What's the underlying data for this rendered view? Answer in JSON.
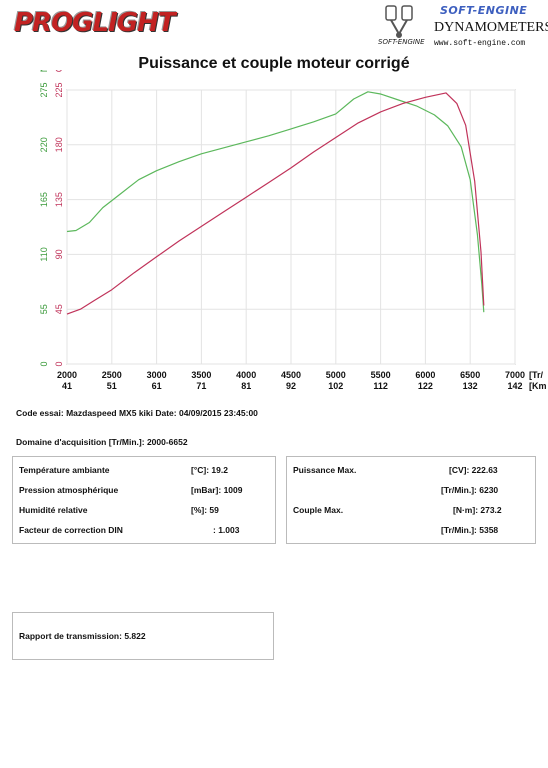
{
  "header": {
    "left_logo": "PROGLIGHT",
    "right_brand_top": "SOFT-ENGINE",
    "right_brand_main": "DYNAMOMETERS",
    "right_brand_small": "SOFT-ENGINE",
    "right_brand_url": "www.soft-engine.com"
  },
  "chart_data": {
    "type": "line",
    "title": "Puissance et couple moteur corrigé",
    "x_unit_label": "[Tr/",
    "x2_unit_label": "[Km",
    "x_ticks": [
      2000,
      2500,
      3000,
      3500,
      4000,
      4500,
      5000,
      5500,
      6000,
      6500,
      7000
    ],
    "x2_ticks": [
      "41",
      "51",
      "61",
      "71",
      "81",
      "92",
      "102",
      "112",
      "122",
      "132",
      "142"
    ],
    "xlim": [
      2000,
      7000
    ],
    "left_axis_nm": {
      "label": "N m",
      "ticks": [
        "0",
        "55",
        "110",
        "165",
        "220",
        "275"
      ],
      "ylim": [
        0,
        275
      ],
      "color": "#3a9a3a"
    },
    "left_axis_cv": {
      "label": "CV",
      "ticks": [
        "0",
        "45",
        "90",
        "135",
        "180",
        "225"
      ],
      "ylim": [
        0,
        225
      ],
      "color": "#c0335a"
    },
    "grid": true,
    "series": [
      {
        "name": "",
        "axis": "nm",
        "color": "#5cb85c",
        "x": [
          2000,
          2100,
          2250,
          2400,
          2600,
          2800,
          3000,
          3250,
          3500,
          3750,
          4000,
          4250,
          4500,
          4750,
          5000,
          5200,
          5358,
          5500,
          5700,
          5900,
          6100,
          6250,
          6400,
          6500,
          6580,
          6630,
          6652
        ],
        "values": [
          133,
          134,
          142,
          157,
          171,
          185,
          194,
          203,
          211,
          217,
          223,
          229,
          236,
          243,
          251,
          266,
          273.2,
          271,
          265,
          259,
          250,
          239,
          218,
          185,
          130,
          80,
          52
        ]
      },
      {
        "name": "",
        "axis": "cv",
        "color": "#c0335a",
        "x": [
          2000,
          2150,
          2300,
          2500,
          2750,
          3000,
          3250,
          3500,
          3750,
          4000,
          4250,
          4500,
          4750,
          5000,
          5250,
          5500,
          5750,
          6000,
          6230,
          6350,
          6450,
          6550,
          6620,
          6652
        ],
        "values": [
          41,
          45,
          52,
          61,
          75,
          88,
          101,
          113,
          125,
          137,
          149,
          161,
          174,
          186,
          198,
          207,
          214,
          219,
          222.63,
          214,
          196,
          150,
          92,
          48
        ]
      }
    ]
  },
  "info": {
    "code_essai": "Code essai: Mazdaspeed MX5 kiki  Date: 04/09/2015 23:45:00",
    "domaine": "Domaine d'acquisition [Tr/Min.]: 2000-6652",
    "left_box": [
      {
        "label": "Température ambiante",
        "unit": "[°C]: 19.2"
      },
      {
        "label": "Pression atmosphérique",
        "unit": "[mBar]: 1009"
      },
      {
        "label": "Humidité relative",
        "unit": "[%]: 59"
      },
      {
        "label": "Facteur de correction DIN",
        "unit": ": 1.003"
      }
    ],
    "right_box": [
      {
        "label": "Puissance Max.",
        "unit": "[CV]: 222.63"
      },
      {
        "label": "",
        "unit": "[Tr/Min.]: 6230"
      },
      {
        "label": "Couple Max.",
        "unit": "[N·m]: 273.2"
      },
      {
        "label": "",
        "unit": "[Tr/Min.]: 5358"
      }
    ],
    "rapport": "Rapport de transmission: 5.822"
  }
}
